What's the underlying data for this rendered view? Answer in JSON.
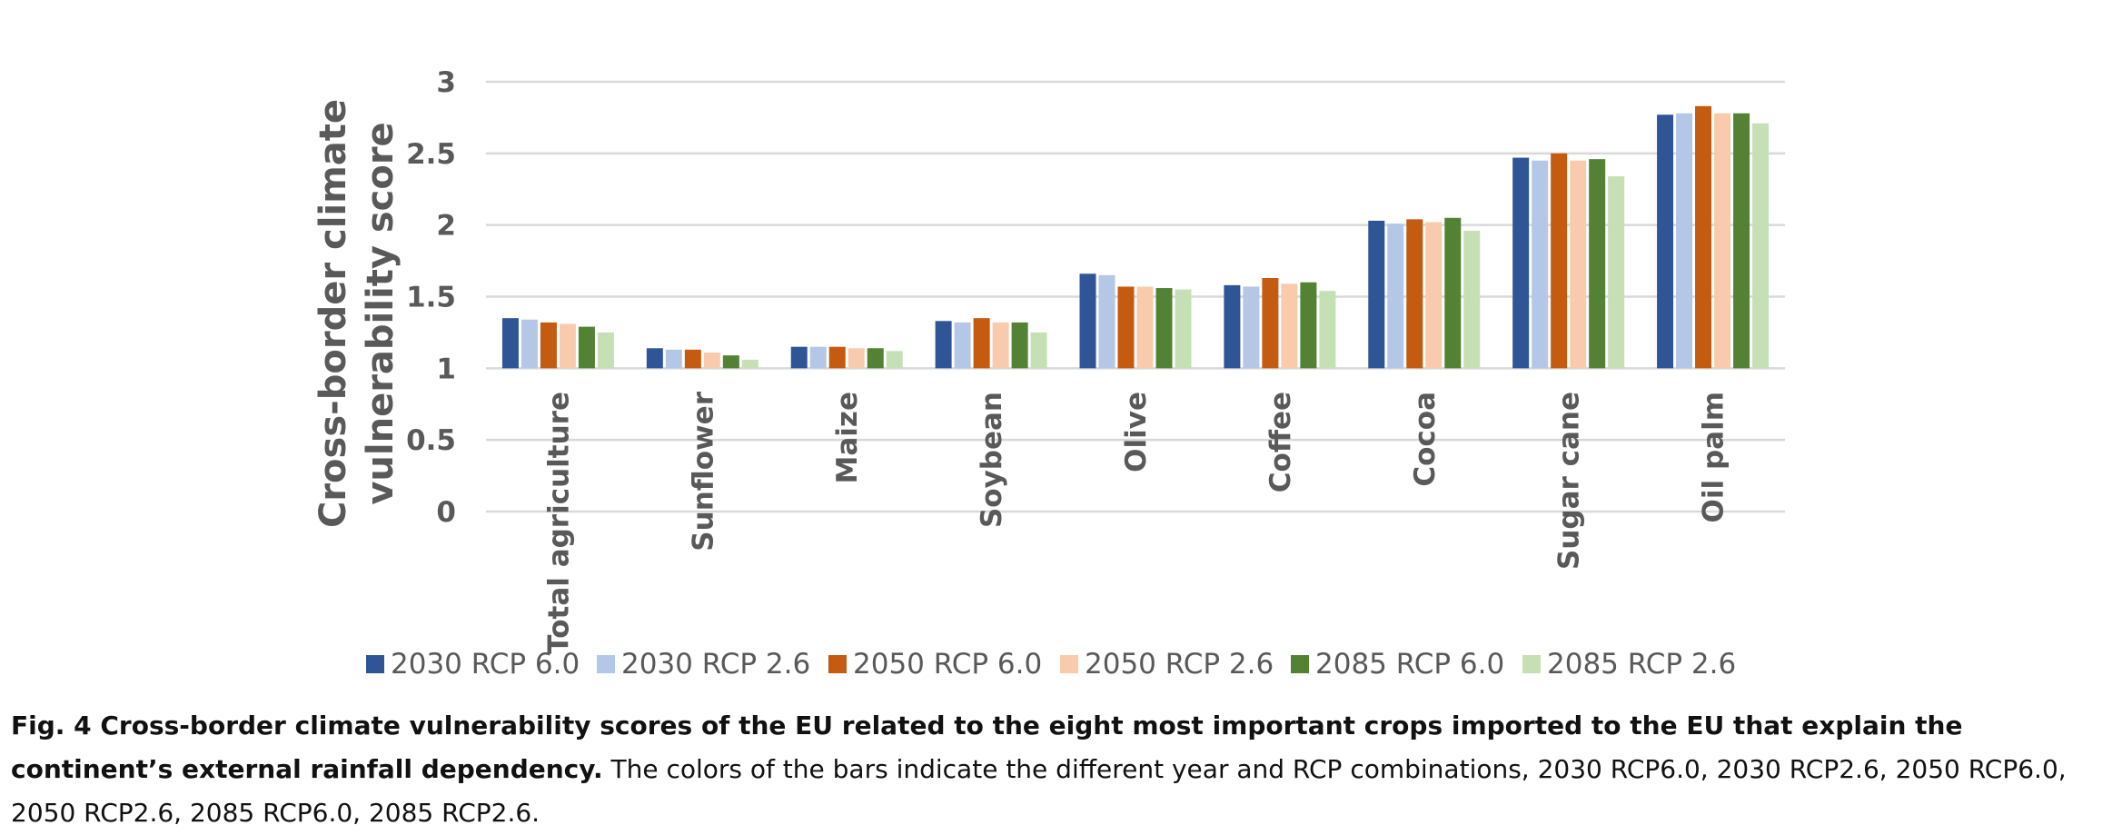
{
  "chart_data": {
    "type": "bar",
    "ylabel": [
      "Cross-border climate",
      "vulnerability score"
    ],
    "xlabel": "",
    "ylim": [
      0,
      3
    ],
    "yticks": [
      0,
      0.5,
      1,
      1.5,
      2,
      2.5,
      3
    ],
    "ytick_labels": [
      "0",
      "0.5",
      "1",
      "1.5",
      "2",
      "2.5",
      "3"
    ],
    "grid": true,
    "legend_position": "bottom",
    "categories": [
      "Total agriculture",
      "Sunflower",
      "Maize",
      "Soybean",
      "Olive",
      "Coffee",
      "Cocoa",
      "Sugar cane",
      "Oil palm"
    ],
    "series": [
      {
        "name": "2030 RCP 6.0",
        "color": "#2F5597",
        "values": [
          1.35,
          1.14,
          1.15,
          1.33,
          1.66,
          1.58,
          2.03,
          2.47,
          2.77
        ]
      },
      {
        "name": "2030 RCP 2.6",
        "color": "#B4C7E7",
        "values": [
          1.34,
          1.13,
          1.15,
          1.32,
          1.65,
          1.57,
          2.01,
          2.45,
          2.78
        ]
      },
      {
        "name": "2050 RCP 6.0",
        "color": "#C55A11",
        "values": [
          1.32,
          1.13,
          1.15,
          1.35,
          1.57,
          1.63,
          2.04,
          2.5,
          2.83
        ]
      },
      {
        "name": "2050 RCP 2.6",
        "color": "#F8CBAD",
        "values": [
          1.31,
          1.11,
          1.14,
          1.32,
          1.57,
          1.59,
          2.02,
          2.45,
          2.78
        ]
      },
      {
        "name": "2085 RCP 6.0",
        "color": "#548235",
        "values": [
          1.29,
          1.09,
          1.14,
          1.32,
          1.56,
          1.6,
          2.05,
          2.46,
          2.78
        ]
      },
      {
        "name": "2085 RCP 2.6",
        "color": "#C5E0B4",
        "values": [
          1.25,
          1.06,
          1.12,
          1.25,
          1.55,
          1.54,
          1.96,
          2.34,
          2.71
        ]
      }
    ]
  },
  "caption": {
    "bold": "Fig. 4 Cross-border climate vulnerability scores of the EU related to the eight most important crops imported to the EU that explain the continent’s external rainfall dependency.",
    "text": " The colors of the bars indicate the different year and RCP combinations, 2030 RCP6.0, 2030 RCP2.6, 2050 RCP6.0, 2050 RCP2.6, 2085 RCP6.0, 2085 RCP2.6."
  }
}
